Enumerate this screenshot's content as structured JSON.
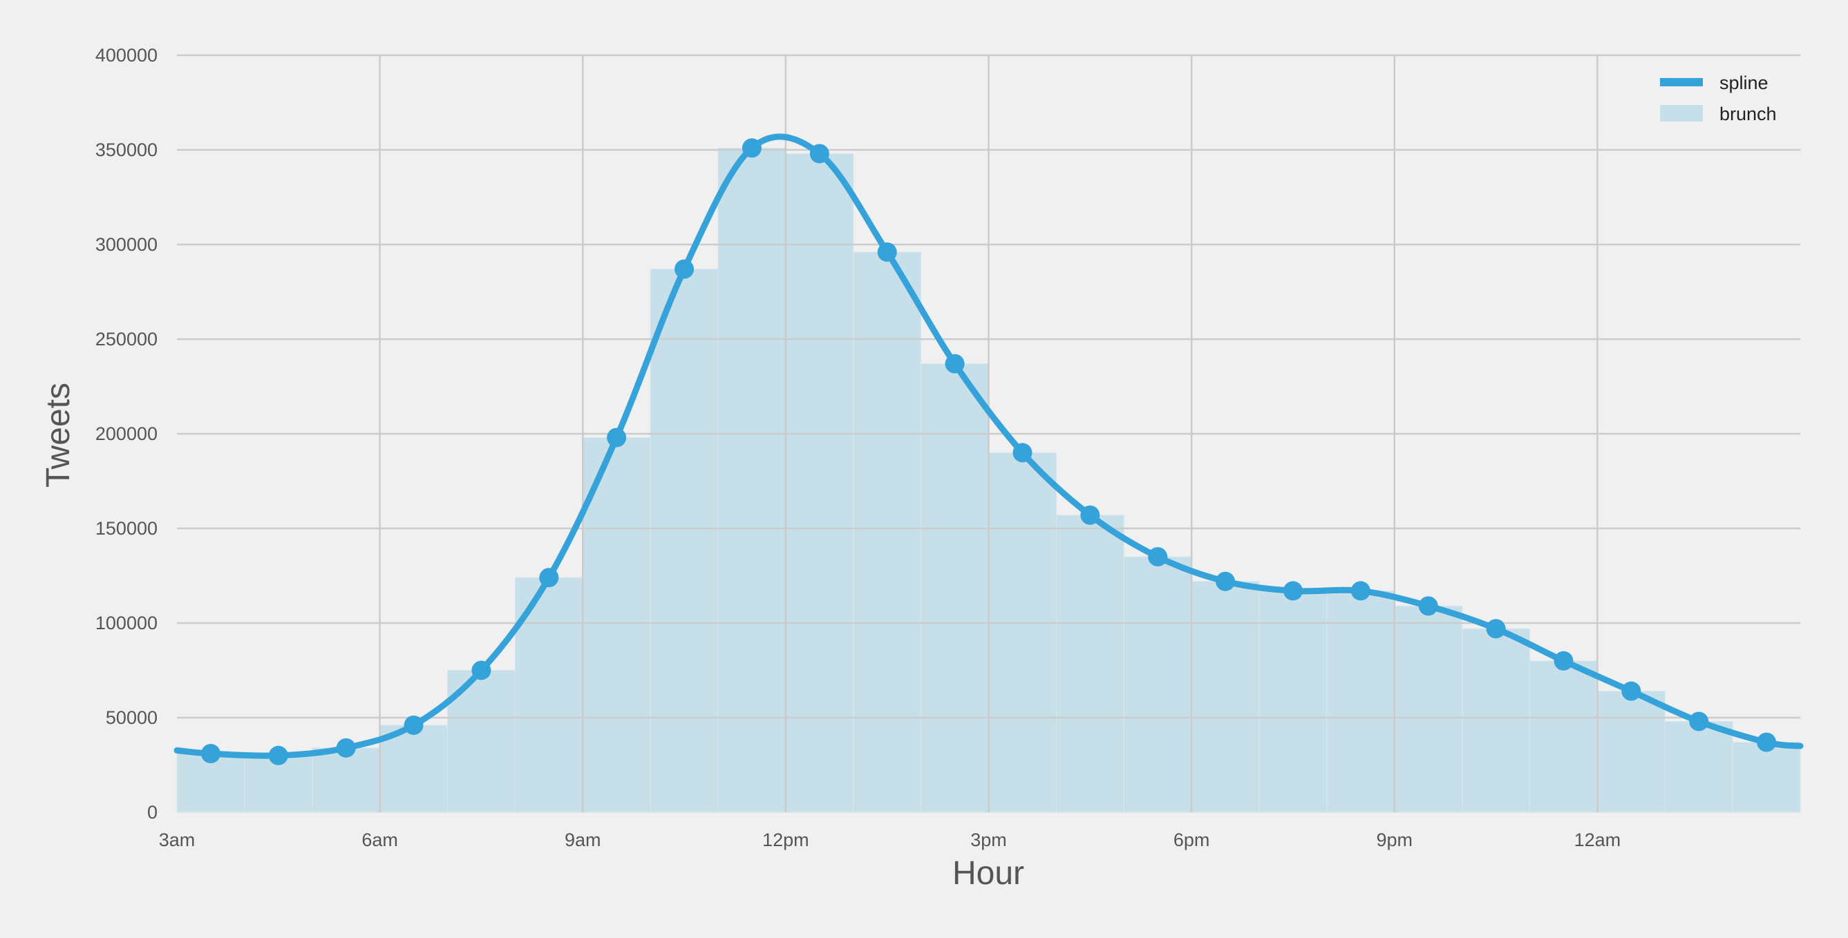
{
  "chart_data": {
    "type": "bar",
    "xlabel": "Hour",
    "ylabel": "Tweets",
    "xlim": [
      3,
      27
    ],
    "ylim": [
      0,
      400000
    ],
    "x_ticks": [
      3,
      6,
      9,
      12,
      15,
      18,
      21,
      24
    ],
    "x_tick_labels": [
      "3am",
      "6am",
      "9am",
      "12pm",
      "3pm",
      "6pm",
      "9pm",
      "12am"
    ],
    "y_ticks": [
      0,
      50000,
      100000,
      150000,
      200000,
      250000,
      300000,
      350000,
      400000
    ],
    "y_tick_labels": [
      "0",
      "50000",
      "100000",
      "150000",
      "200000",
      "250000",
      "300000",
      "350000",
      "400000"
    ],
    "grid": true,
    "legend_position": "top-right",
    "series": [
      {
        "name": "brunch",
        "kind": "histogram",
        "color": "#c7dfe9",
        "bin_edges": [
          3,
          4,
          5,
          6,
          7,
          8,
          9,
          10,
          11,
          12,
          13,
          14,
          15,
          16,
          17,
          18,
          19,
          20,
          21,
          22,
          23,
          24,
          25,
          26,
          27
        ],
        "values": [
          31000,
          30000,
          34000,
          46000,
          75000,
          124000,
          198000,
          287000,
          351000,
          348000,
          296000,
          237000,
          190000,
          157000,
          135000,
          122000,
          117000,
          117000,
          109000,
          97000,
          80000,
          64000,
          48000,
          37000
        ]
      },
      {
        "name": "spline",
        "kind": "line",
        "color": "#35a2d9",
        "x": [
          3.5,
          4.5,
          5.5,
          6.5,
          7.5,
          8.5,
          9.5,
          10.5,
          11.5,
          12.5,
          13.5,
          14.5,
          15.5,
          16.5,
          17.5,
          18.5,
          19.5,
          20.5,
          21.5,
          22.5,
          23.5,
          24.5,
          25.5,
          26.5
        ],
        "values": [
          31000,
          30000,
          34000,
          46000,
          75000,
          124000,
          198000,
          287000,
          351000,
          348000,
          296000,
          237000,
          190000,
          157000,
          135000,
          122000,
          117000,
          117000,
          109000,
          97000,
          80000,
          64000,
          48000,
          37000
        ]
      }
    ]
  }
}
